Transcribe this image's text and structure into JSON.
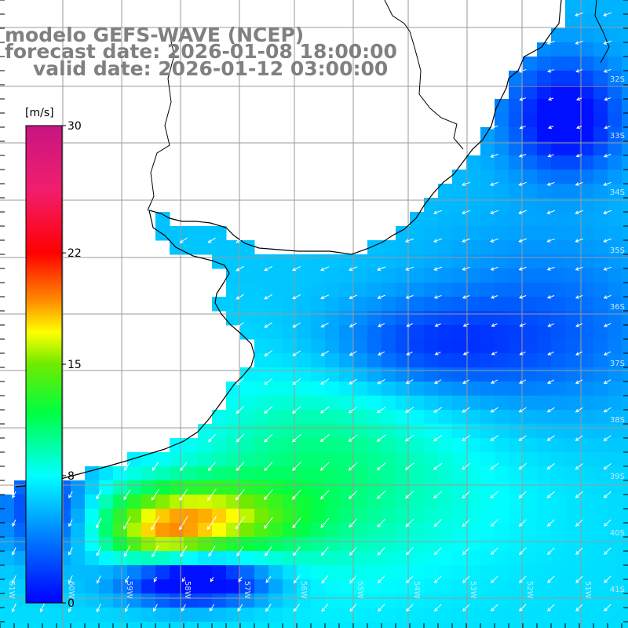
{
  "title": {
    "model": "modelo GEFS-WAVE (NCEP)",
    "forecast": "forecast date: 2026-01-08 18:00:00",
    "valid": "valid date: 2026-01-12 03:00:00"
  },
  "colorbar": {
    "unit": "[m/s]",
    "min": 0,
    "max": 30,
    "ticks": [
      "0",
      "8",
      "15",
      "22",
      "30"
    ],
    "colors": [
      "#0000ff",
      "#00a0ff",
      "#00ffff",
      "#00ff40",
      "#00e000",
      "#ffff00",
      "#ff8000",
      "#ff0000",
      "#ff2a55",
      "#d0207a",
      "#c81882"
    ]
  },
  "axes": {
    "lat_labels": [
      "32S",
      "33S",
      "34S",
      "35S",
      "36S",
      "37S",
      "38S",
      "39S",
      "40S",
      "41S"
    ],
    "lon_labels": [
      "61W",
      "60W",
      "59W",
      "58W",
      "57W",
      "56W",
      "55W",
      "54W",
      "53W",
      "52W",
      "51W"
    ]
  },
  "colors": {
    "land": "#ffffff",
    "grid": "#9a9a9a",
    "coast": "#000000",
    "arrow": "#ffffff"
  }
}
